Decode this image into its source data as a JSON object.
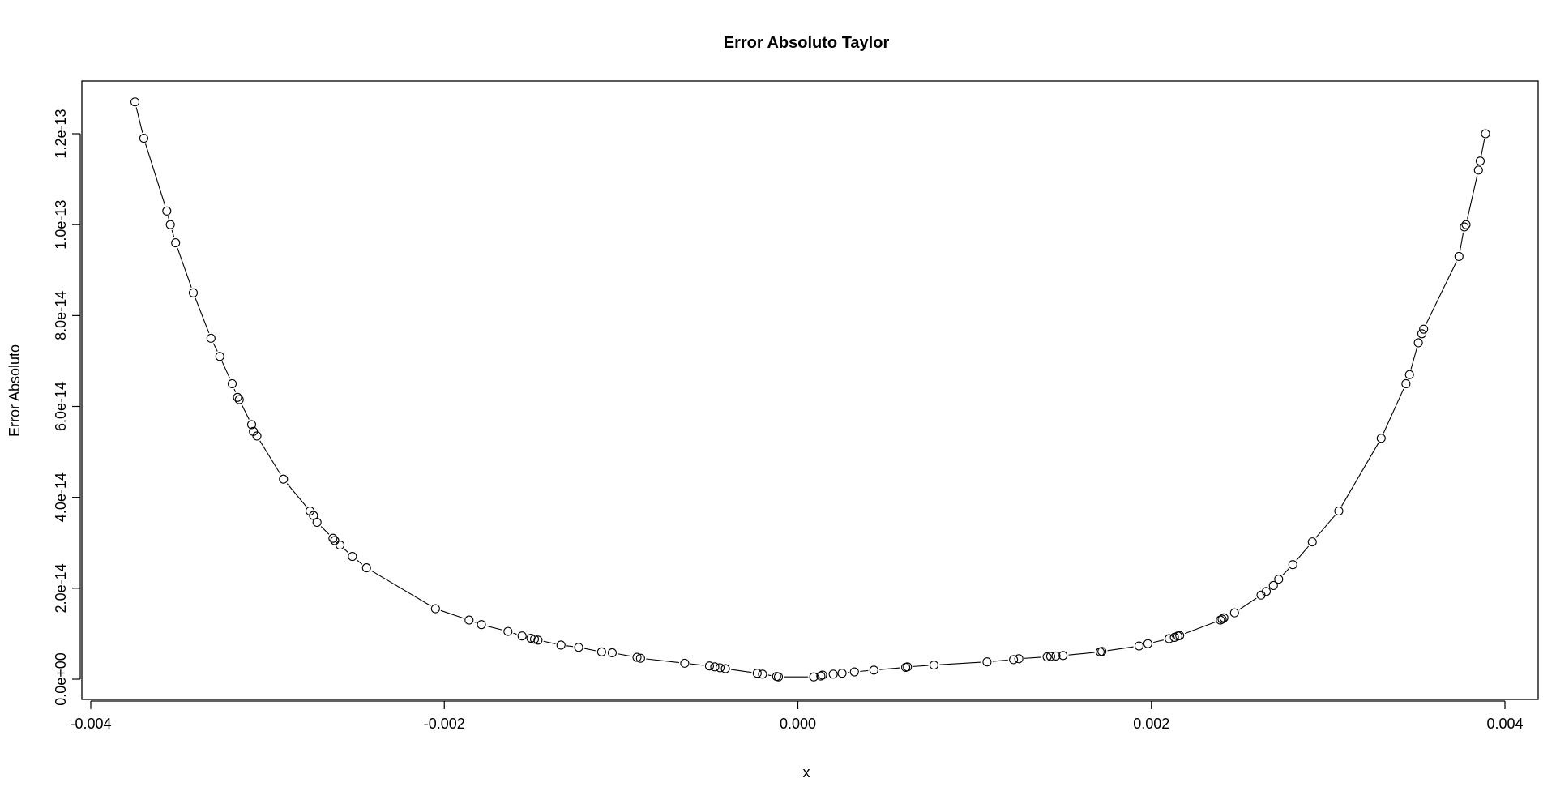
{
  "chart_data": {
    "type": "line",
    "title": "Error Absoluto Taylor",
    "xlabel": "x",
    "ylabel": "Error Absoluto",
    "xlim": [
      -0.004,
      0.004
    ],
    "ylim": [
      0,
      1.2e-13
    ],
    "x_ticks": [
      -0.004,
      -0.002,
      0.0,
      0.002,
      0.004
    ],
    "x_tick_labels": [
      "-0.004",
      "-0.002",
      "0.000",
      "0.002",
      "0.004"
    ],
    "y_ticks": [
      0,
      2e-14,
      4e-14,
      6e-14,
      8e-14,
      1e-13,
      1.2e-13
    ],
    "y_tick_labels": [
      "0.0e+00",
      "2.0e-14",
      "4.0e-14",
      "6.0e-14",
      "8.0e-14",
      "1.0e-13",
      "1.2e-13"
    ],
    "grid": false,
    "markers": "open-circle",
    "line_color": "#000000",
    "series": [
      {
        "x": [
          -0.00375,
          -0.0037,
          -0.00357,
          -0.00355,
          -0.00352,
          -0.00342,
          -0.00332,
          -0.00327,
          -0.0032,
          -0.00317,
          -0.00316,
          -0.00309,
          -0.00308,
          -0.00306,
          -0.00291,
          -0.00276,
          -0.00274,
          -0.00272,
          -0.00263,
          -0.00262,
          -0.00259,
          -0.00252,
          -0.00244,
          -0.00205,
          -0.00186,
          -0.00179,
          -0.00164,
          -0.00156,
          -0.00151,
          -0.00149,
          -0.00147,
          -0.00134,
          -0.00124,
          -0.00111,
          -0.00105,
          -0.00091,
          -0.00089,
          -0.00064,
          -0.0005,
          -0.00047,
          -0.00044,
          -0.00041,
          -0.00023,
          -0.0002,
          -0.00012,
          -0.00011,
          9e-05,
          0.00013,
          0.00014,
          0.0002,
          0.00025,
          0.00032,
          0.00043,
          0.00061,
          0.00062,
          0.00077,
          0.00107,
          0.00122,
          0.00125,
          0.00141,
          0.00143,
          0.00146,
          0.0015,
          0.00171,
          0.00172,
          0.00193,
          0.00198,
          0.0021,
          0.00213,
          0.00215,
          0.00216,
          0.00239,
          0.0024,
          0.00241,
          0.00247,
          0.00262,
          0.00265,
          0.00269,
          0.00272,
          0.0028,
          0.00291,
          0.00306,
          0.0033,
          0.00344,
          0.00346,
          0.00351,
          0.00353,
          0.00354,
          0.00374,
          0.00377,
          0.00378,
          0.00385,
          0.00386,
          0.00389
        ],
        "y": [
          1.27e-13,
          1.19e-13,
          1.03e-13,
          1e-13,
          9.6e-14,
          8.5e-14,
          7.5e-14,
          7.1e-14,
          6.5e-14,
          6.2e-14,
          6.15e-14,
          5.6e-14,
          5.45e-14,
          5.35e-14,
          4.4e-14,
          3.7e-14,
          3.6e-14,
          3.45e-14,
          3.1e-14,
          3.05e-14,
          2.95e-14,
          2.7e-14,
          2.45e-14,
          1.55e-14,
          1.3e-14,
          1.2e-14,
          1.05e-14,
          9.5e-15,
          9e-15,
          8.8e-15,
          8.6e-15,
          7.5e-15,
          7e-15,
          6e-15,
          5.8e-15,
          4.8e-15,
          4.6e-15,
          3.5e-15,
          2.9e-15,
          2.7e-15,
          2.5e-15,
          2.3e-15,
          1.3e-15,
          1.1e-15,
          6e-16,
          5e-16,
          5e-16,
          7e-16,
          9e-16,
          1.1e-15,
          1.3e-15,
          1.6e-15,
          2e-15,
          2.6e-15,
          2.7e-15,
          3.1e-15,
          3.8e-15,
          4.3e-15,
          4.5e-15,
          4.9e-15,
          5e-15,
          5.1e-15,
          5.2e-15,
          6e-15,
          6.1e-15,
          7.3e-15,
          7.8e-15,
          8.9e-15,
          9.2e-15,
          9.5e-15,
          9.6e-15,
          1.3e-14,
          1.32e-14,
          1.35e-14,
          1.46e-14,
          1.85e-14,
          1.93e-14,
          2.06e-14,
          2.2e-14,
          2.52e-14,
          3.02e-14,
          3.7e-14,
          5.3e-14,
          6.5e-14,
          6.7e-14,
          7.4e-14,
          7.6e-14,
          7.7e-14,
          9.3e-14,
          9.95e-14,
          1e-13,
          1.12e-13,
          1.14e-13,
          1.2e-13
        ]
      }
    ]
  }
}
